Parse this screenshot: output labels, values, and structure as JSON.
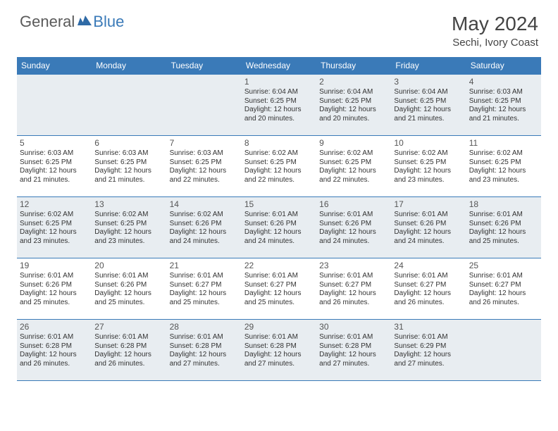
{
  "logo": {
    "general": "General",
    "blue": "Blue"
  },
  "title": "May 2024",
  "subtitle": "Sechi, Ivory Coast",
  "colors": {
    "header_bg": "#3a7ab8",
    "header_text": "#ffffff",
    "shaded_bg": "#e8edf1",
    "border": "#3a7ab8",
    "daynum": "#555555",
    "detail": "#333333"
  },
  "dayNames": [
    "Sunday",
    "Monday",
    "Tuesday",
    "Wednesday",
    "Thursday",
    "Friday",
    "Saturday"
  ],
  "weeks": [
    [
      {
        "shaded": true
      },
      {
        "shaded": true
      },
      {
        "shaded": true
      },
      {
        "day": "1",
        "shaded": true,
        "sunrise": "6:04 AM",
        "sunset": "6:25 PM",
        "daylight": "12 hours and 20 minutes."
      },
      {
        "day": "2",
        "shaded": true,
        "sunrise": "6:04 AM",
        "sunset": "6:25 PM",
        "daylight": "12 hours and 20 minutes."
      },
      {
        "day": "3",
        "shaded": true,
        "sunrise": "6:04 AM",
        "sunset": "6:25 PM",
        "daylight": "12 hours and 21 minutes."
      },
      {
        "day": "4",
        "shaded": true,
        "sunrise": "6:03 AM",
        "sunset": "6:25 PM",
        "daylight": "12 hours and 21 minutes."
      }
    ],
    [
      {
        "day": "5",
        "sunrise": "6:03 AM",
        "sunset": "6:25 PM",
        "daylight": "12 hours and 21 minutes."
      },
      {
        "day": "6",
        "sunrise": "6:03 AM",
        "sunset": "6:25 PM",
        "daylight": "12 hours and 21 minutes."
      },
      {
        "day": "7",
        "sunrise": "6:03 AM",
        "sunset": "6:25 PM",
        "daylight": "12 hours and 22 minutes."
      },
      {
        "day": "8",
        "sunrise": "6:02 AM",
        "sunset": "6:25 PM",
        "daylight": "12 hours and 22 minutes."
      },
      {
        "day": "9",
        "sunrise": "6:02 AM",
        "sunset": "6:25 PM",
        "daylight": "12 hours and 22 minutes."
      },
      {
        "day": "10",
        "sunrise": "6:02 AM",
        "sunset": "6:25 PM",
        "daylight": "12 hours and 23 minutes."
      },
      {
        "day": "11",
        "sunrise": "6:02 AM",
        "sunset": "6:25 PM",
        "daylight": "12 hours and 23 minutes."
      }
    ],
    [
      {
        "day": "12",
        "shaded": true,
        "sunrise": "6:02 AM",
        "sunset": "6:25 PM",
        "daylight": "12 hours and 23 minutes."
      },
      {
        "day": "13",
        "shaded": true,
        "sunrise": "6:02 AM",
        "sunset": "6:25 PM",
        "daylight": "12 hours and 23 minutes."
      },
      {
        "day": "14",
        "shaded": true,
        "sunrise": "6:02 AM",
        "sunset": "6:26 PM",
        "daylight": "12 hours and 24 minutes."
      },
      {
        "day": "15",
        "shaded": true,
        "sunrise": "6:01 AM",
        "sunset": "6:26 PM",
        "daylight": "12 hours and 24 minutes."
      },
      {
        "day": "16",
        "shaded": true,
        "sunrise": "6:01 AM",
        "sunset": "6:26 PM",
        "daylight": "12 hours and 24 minutes."
      },
      {
        "day": "17",
        "shaded": true,
        "sunrise": "6:01 AM",
        "sunset": "6:26 PM",
        "daylight": "12 hours and 24 minutes."
      },
      {
        "day": "18",
        "shaded": true,
        "sunrise": "6:01 AM",
        "sunset": "6:26 PM",
        "daylight": "12 hours and 25 minutes."
      }
    ],
    [
      {
        "day": "19",
        "sunrise": "6:01 AM",
        "sunset": "6:26 PM",
        "daylight": "12 hours and 25 minutes."
      },
      {
        "day": "20",
        "sunrise": "6:01 AM",
        "sunset": "6:26 PM",
        "daylight": "12 hours and 25 minutes."
      },
      {
        "day": "21",
        "sunrise": "6:01 AM",
        "sunset": "6:27 PM",
        "daylight": "12 hours and 25 minutes."
      },
      {
        "day": "22",
        "sunrise": "6:01 AM",
        "sunset": "6:27 PM",
        "daylight": "12 hours and 25 minutes."
      },
      {
        "day": "23",
        "sunrise": "6:01 AM",
        "sunset": "6:27 PM",
        "daylight": "12 hours and 26 minutes."
      },
      {
        "day": "24",
        "sunrise": "6:01 AM",
        "sunset": "6:27 PM",
        "daylight": "12 hours and 26 minutes."
      },
      {
        "day": "25",
        "sunrise": "6:01 AM",
        "sunset": "6:27 PM",
        "daylight": "12 hours and 26 minutes."
      }
    ],
    [
      {
        "day": "26",
        "shaded": true,
        "sunrise": "6:01 AM",
        "sunset": "6:28 PM",
        "daylight": "12 hours and 26 minutes."
      },
      {
        "day": "27",
        "shaded": true,
        "sunrise": "6:01 AM",
        "sunset": "6:28 PM",
        "daylight": "12 hours and 26 minutes."
      },
      {
        "day": "28",
        "shaded": true,
        "sunrise": "6:01 AM",
        "sunset": "6:28 PM",
        "daylight": "12 hours and 27 minutes."
      },
      {
        "day": "29",
        "shaded": true,
        "sunrise": "6:01 AM",
        "sunset": "6:28 PM",
        "daylight": "12 hours and 27 minutes."
      },
      {
        "day": "30",
        "shaded": true,
        "sunrise": "6:01 AM",
        "sunset": "6:28 PM",
        "daylight": "12 hours and 27 minutes."
      },
      {
        "day": "31",
        "shaded": true,
        "sunrise": "6:01 AM",
        "sunset": "6:29 PM",
        "daylight": "12 hours and 27 minutes."
      },
      {
        "shaded": true
      }
    ]
  ],
  "labels": {
    "sunrise": "Sunrise:",
    "sunset": "Sunset:",
    "daylight": "Daylight:"
  }
}
